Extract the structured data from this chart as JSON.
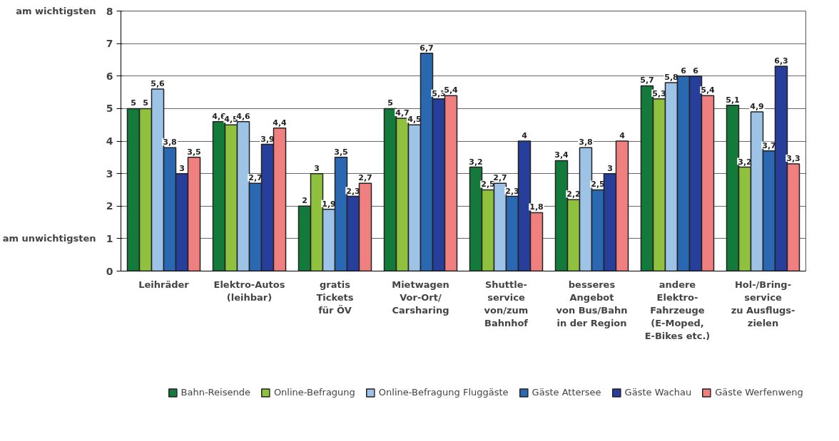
{
  "chart_data": {
    "type": "bar",
    "categories": [
      "Leihräder",
      "Elektro-Autos\n(leihbar)",
      "gratis\nTickets\nfür ÖV",
      "Mietwagen\nVor-Ort/\nCarsharing",
      "Shuttle-\nservice\nvon/zum\nBahnhof",
      "besseres\nAngebot\nvon Bus/Bahn\nin der Region",
      "andere\nElektro-\nFahrzeuge\n(E-Moped,\nE-Bikes etc.)",
      "Hol-/Bring-\nservice\nzu Ausflugs-\nzielen"
    ],
    "series": [
      {
        "name": "Bahn-Reisende",
        "color": "#137a3b",
        "values": [
          5,
          4.6,
          2,
          5,
          3.2,
          3.4,
          5.7,
          5.1
        ],
        "value_labels": [
          "5",
          "4,6",
          "2",
          "5",
          "3,2",
          "3,4",
          "5,7",
          "5,1"
        ]
      },
      {
        "name": "Online-Befragung",
        "color": "#8fc13e",
        "values": [
          5,
          4.5,
          3,
          4.7,
          2.5,
          2.2,
          5.3,
          3.2
        ],
        "value_labels": [
          "5",
          "4,5",
          "3",
          "4,7",
          "2,5",
          "2,2",
          "5,3",
          "3,2"
        ]
      },
      {
        "name": "Online-Befragung Fluggäste",
        "color": "#9dc3e6",
        "values": [
          5.6,
          4.6,
          1.9,
          4.5,
          2.7,
          3.8,
          5.8,
          4.9
        ],
        "value_labels": [
          "5,6",
          "4,6",
          "1,9",
          "4,5",
          "2,7",
          "3,8",
          "5,8",
          "4,9"
        ]
      },
      {
        "name": "Gäste Attersee",
        "color": "#2a68b2",
        "values": [
          3.8,
          2.7,
          3.5,
          6.7,
          2.3,
          2.5,
          6,
          3.7
        ],
        "value_labels": [
          "3,8",
          "2,7",
          "3,5",
          "6,7",
          "2,3",
          "2,5",
          "6",
          "3,7"
        ]
      },
      {
        "name": "Gäste Wachau",
        "color": "#273f9a",
        "values": [
          3,
          3.9,
          2.3,
          5.3,
          4,
          3,
          6,
          6.3
        ],
        "value_labels": [
          "3",
          "3,9",
          "2,3",
          "5,3",
          "4",
          "3",
          "6",
          "6,3"
        ]
      },
      {
        "name": "Gäste Werfenweng",
        "color": "#f08080",
        "values": [
          3.5,
          4.4,
          2.7,
          5.4,
          1.8,
          4,
          5.4,
          3.3
        ],
        "value_labels": [
          "3,5",
          "4,4",
          "2,7",
          "5,4",
          "1,8",
          "4",
          "5,4",
          "3,3"
        ]
      }
    ],
    "ylim": [
      0,
      8
    ],
    "yticks": [
      0,
      1,
      2,
      3,
      4,
      5,
      6,
      7,
      8
    ],
    "grid": "y",
    "legend": "bottom",
    "annotations": [
      "am wichtigsten",
      "am unwichtigsten"
    ]
  }
}
